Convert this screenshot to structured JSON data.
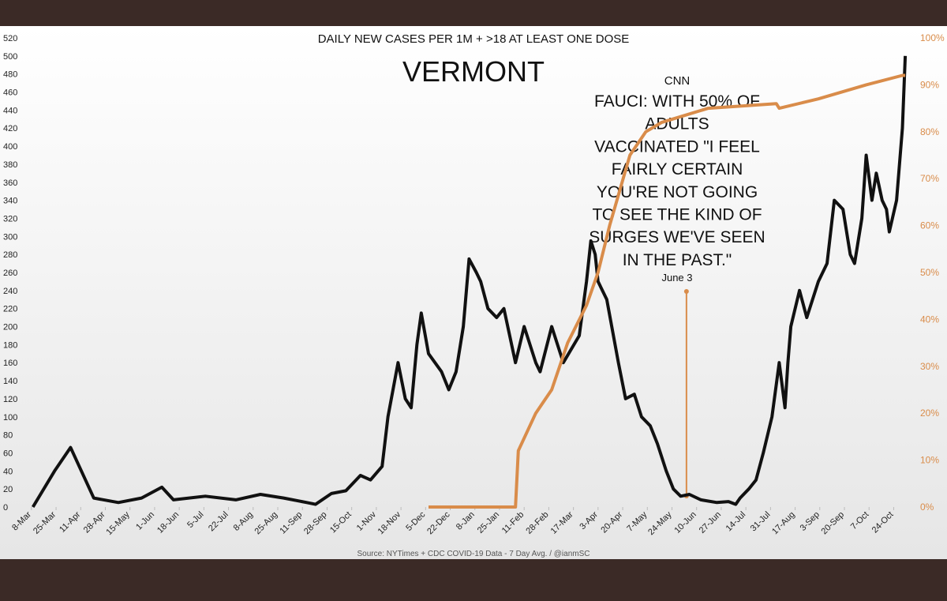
{
  "chart_data": {
    "type": "line",
    "title": "VERMONT",
    "subtitle": "DAILY NEW CASES PER 1M + >18 AT LEAST ONE DOSE",
    "source": "Source: NYTimes  + CDC COVID-19 Data - 7 Day Avg. / @ianmSC",
    "annotation": {
      "source": "CNN",
      "lines": [
        "FAUCI: WITH 50% OF",
        "ADULTS",
        "VACCINATED \"I FEEL",
        "FAIRLY CERTAIN",
        "YOU'RE NOT GOING",
        "TO SEE THE KIND OF",
        "SURGES WE'VE SEEN",
        "IN THE PAST.\""
      ],
      "date": "June 3",
      "x": 452,
      "color": "#d98c4a"
    },
    "xlim": [
      -1,
      610
    ],
    "xticks": [
      {
        "value": 0,
        "label": "8-Mar"
      },
      {
        "value": 17,
        "label": "25-Mar"
      },
      {
        "value": 34,
        "label": "11-Apr"
      },
      {
        "value": 51,
        "label": "28-Apr"
      },
      {
        "value": 68,
        "label": "15-May"
      },
      {
        "value": 85,
        "label": "1-Jun"
      },
      {
        "value": 102,
        "label": "18-Jun"
      },
      {
        "value": 119,
        "label": "5-Jul"
      },
      {
        "value": 136,
        "label": "22-Jul"
      },
      {
        "value": 153,
        "label": "8-Aug"
      },
      {
        "value": 170,
        "label": "25-Aug"
      },
      {
        "value": 187,
        "label": "11-Sep"
      },
      {
        "value": 204,
        "label": "28-Sep"
      },
      {
        "value": 221,
        "label": "15-Oct"
      },
      {
        "value": 238,
        "label": "1-Nov"
      },
      {
        "value": 255,
        "label": "18-Nov"
      },
      {
        "value": 272,
        "label": "5-Dec"
      },
      {
        "value": 289,
        "label": "22-Dec"
      },
      {
        "value": 306,
        "label": "8-Jan"
      },
      {
        "value": 323,
        "label": "25-Jan"
      },
      {
        "value": 340,
        "label": "11-Feb"
      },
      {
        "value": 357,
        "label": "28-Feb"
      },
      {
        "value": 374,
        "label": "17-Mar"
      },
      {
        "value": 391,
        "label": "3-Apr"
      },
      {
        "value": 408,
        "label": "20-Apr"
      },
      {
        "value": 425,
        "label": "7-May"
      },
      {
        "value": 442,
        "label": "24-May"
      },
      {
        "value": 459,
        "label": "10-Jun"
      },
      {
        "value": 476,
        "label": "27-Jun"
      },
      {
        "value": 493,
        "label": "14-Jul"
      },
      {
        "value": 510,
        "label": "31-Jul"
      },
      {
        "value": 527,
        "label": "17-Aug"
      },
      {
        "value": 544,
        "label": "3-Sep"
      },
      {
        "value": 561,
        "label": "20-Sep"
      },
      {
        "value": 578,
        "label": "7-Oct"
      },
      {
        "value": 595,
        "label": "24-Oct"
      }
    ],
    "ylim": [
      0,
      520
    ],
    "yticks": [
      0,
      20,
      40,
      60,
      80,
      100,
      120,
      140,
      160,
      180,
      200,
      220,
      240,
      260,
      280,
      300,
      320,
      340,
      360,
      380,
      400,
      420,
      440,
      460,
      480,
      500,
      520
    ],
    "y2lim": [
      0,
      100
    ],
    "y2ticks": [
      {
        "value": 0,
        "label": "0%"
      },
      {
        "value": 10,
        "label": "10%"
      },
      {
        "value": 20,
        "label": "20%"
      },
      {
        "value": 30,
        "label": "30%"
      },
      {
        "value": 40,
        "label": "40%"
      },
      {
        "value": 50,
        "label": "50%"
      },
      {
        "value": 60,
        "label": "60%"
      },
      {
        "value": 70,
        "label": "70%"
      },
      {
        "value": 80,
        "label": "80%"
      },
      {
        "value": 90,
        "label": "90%"
      },
      {
        "value": 100,
        "label": "100%"
      }
    ],
    "y2color": "#d98c4a",
    "series": [
      {
        "color": "#111111",
        "axis": "y",
        "x": [
          1,
          16,
          27,
          43,
          60,
          76,
          90,
          98,
          120,
          141,
          158,
          174,
          190,
          196,
          207,
          217,
          227,
          234,
          242,
          246,
          253,
          258,
          262,
          266,
          269,
          274,
          283,
          288,
          293,
          298,
          302,
          307,
          310,
          315,
          321,
          326,
          334,
          340,
          348,
          351,
          359,
          367,
          378,
          383,
          386,
          389,
          391,
          397,
          405,
          410,
          416,
          421,
          427,
          432,
          438,
          443,
          448,
          454,
          462,
          473,
          481,
          486,
          489,
          495,
          500,
          505,
          511,
          516,
          520,
          522,
          524,
          530,
          535,
          543,
          549,
          554,
          560,
          565,
          568,
          573,
          576,
          580,
          583,
          587,
          590,
          592,
          597,
          601,
          603
        ],
        "values": [
          0,
          40,
          66,
          10,
          5,
          10,
          22,
          8,
          12,
          8,
          14,
          10,
          5,
          3,
          15,
          18,
          35,
          30,
          45,
          100,
          160,
          120,
          110,
          180,
          215,
          170,
          150,
          130,
          150,
          200,
          275,
          260,
          250,
          220,
          210,
          220,
          160,
          200,
          160,
          150,
          200,
          160,
          190,
          250,
          295,
          280,
          250,
          230,
          160,
          120,
          125,
          100,
          90,
          70,
          40,
          20,
          12,
          14,
          8,
          5,
          6,
          3,
          10,
          20,
          30,
          60,
          100,
          160,
          110,
          160,
          200,
          240,
          210,
          250,
          270,
          340,
          330,
          280,
          270,
          320,
          390,
          340,
          370,
          340,
          330,
          305,
          340,
          420,
          500
        ]
      },
      {
        "color": "#d98c4a",
        "axis": "y2",
        "x": [
          274,
          334,
          336,
          348,
          359,
          370,
          383,
          391,
          399,
          413,
          424,
          435,
          467,
          514,
          516,
          543,
          576,
          601,
          603
        ],
        "values": [
          0,
          0,
          12,
          20,
          25,
          35,
          43,
          50,
          60,
          75,
          80,
          82,
          85,
          86,
          85,
          87,
          90,
          92,
          92
        ]
      }
    ]
  }
}
